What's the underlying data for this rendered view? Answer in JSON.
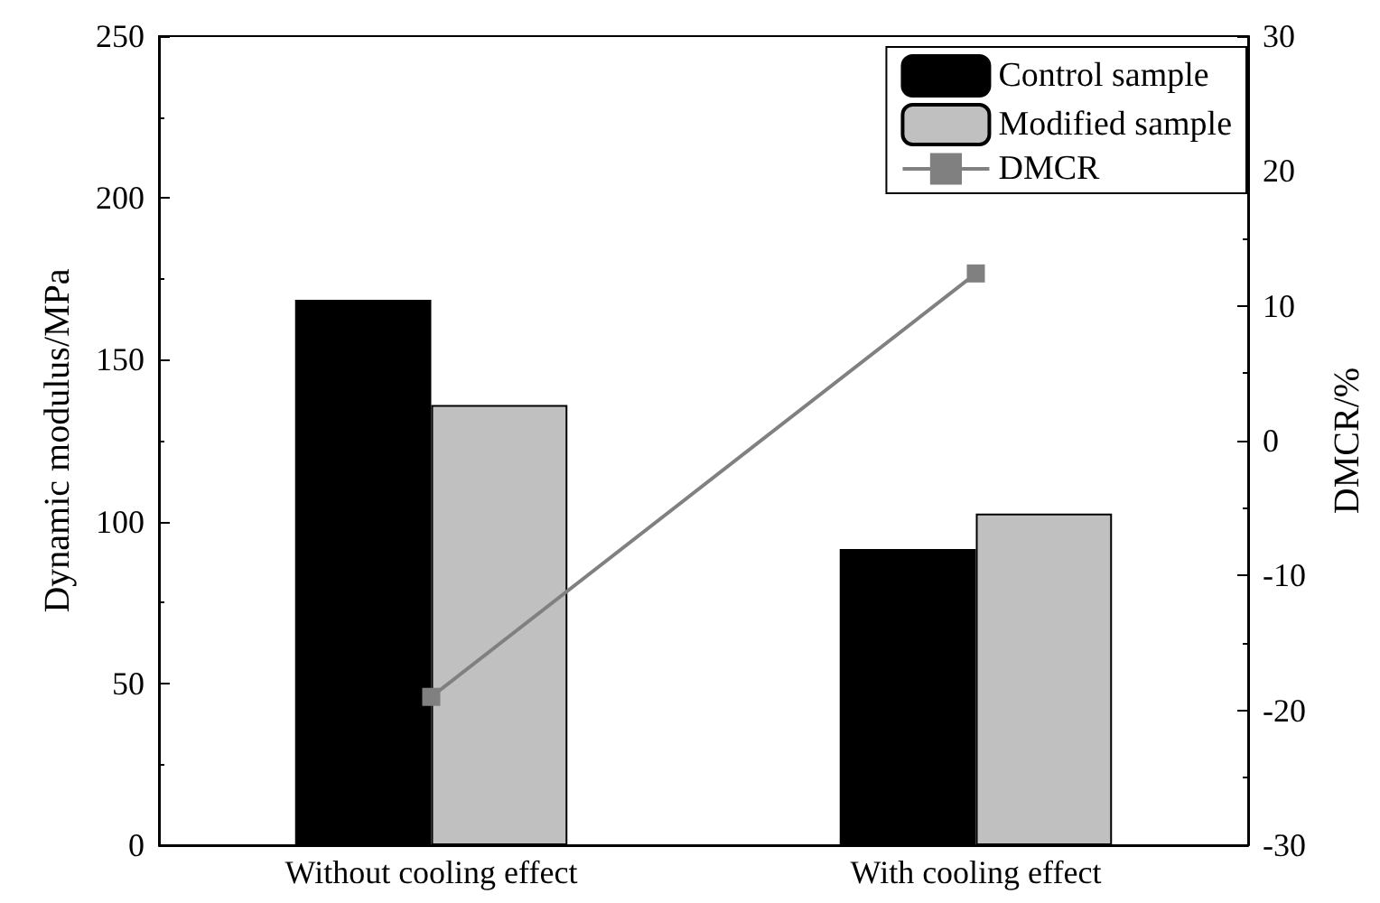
{
  "chart_data": {
    "type": "bar",
    "ylabel": "Dynamic modulus/MPa",
    "y2label": "DMCR/%",
    "categories": [
      "Without cooling effect",
      "With cooling effect"
    ],
    "series": [
      {
        "name": "Control sample",
        "color": "#000000",
        "values": [
          168.5,
          91.5
        ]
      },
      {
        "name": "Modified sample",
        "color": "#c0c0c0",
        "values": [
          136,
          102.5
        ]
      },
      {
        "name": "DMCR",
        "type": "line",
        "axis": "y2",
        "color": "#808080",
        "marker": "square",
        "values": [
          -19,
          12.4
        ]
      }
    ],
    "ylim": [
      0,
      250
    ],
    "yticks": [
      0,
      50,
      100,
      150,
      200,
      250
    ],
    "y2lim": [
      -30,
      30
    ],
    "y2ticks": [
      -30,
      -20,
      -10,
      0,
      10,
      20,
      30
    ],
    "grid": false,
    "legend": "top right"
  }
}
